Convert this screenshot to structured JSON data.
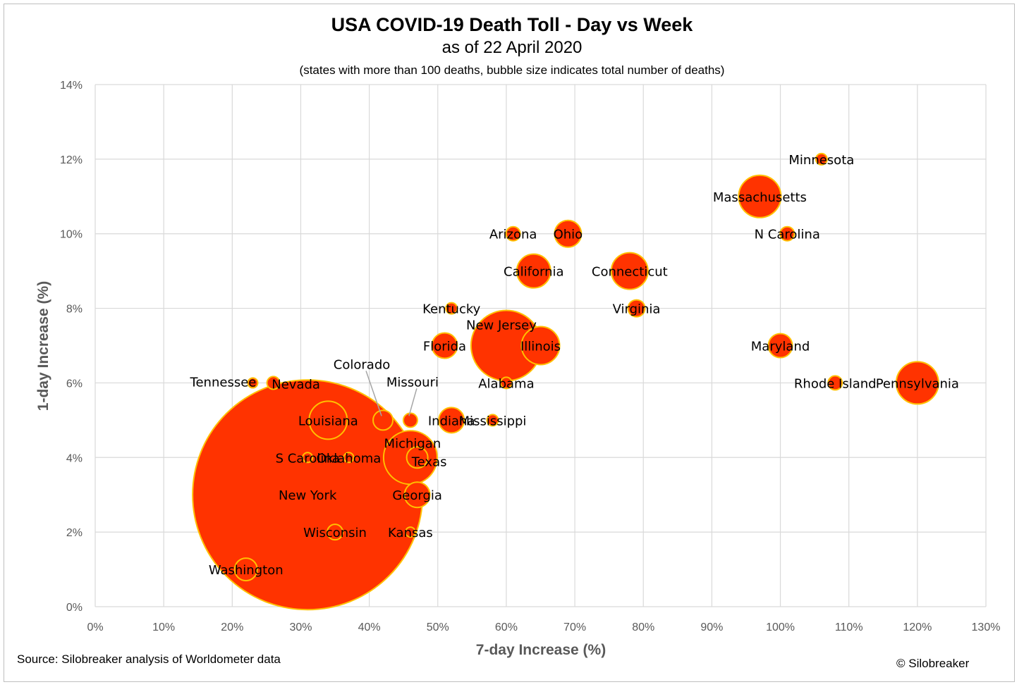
{
  "chart_data": {
    "type": "scatter",
    "title": "USA COVID-19 Death Toll - Day vs Week",
    "subtitle": "as of 22 April 2020",
    "note": "(states with more than 100 deaths, bubble size indicates total number of deaths)",
    "xlabel": "7-day Increase (%)",
    "ylabel": "1-day Increase (%)",
    "xlim": [
      0,
      130
    ],
    "ylim": [
      0,
      14
    ],
    "x_ticks": [
      "0%",
      "10%",
      "20%",
      "30%",
      "40%",
      "50%",
      "60%",
      "70%",
      "80%",
      "90%",
      "100%",
      "110%",
      "120%",
      "130%"
    ],
    "y_ticks": [
      "0%",
      "2%",
      "4%",
      "6%",
      "8%",
      "10%",
      "12%",
      "14%"
    ],
    "grid": true,
    "bubble_color": "#ff3300",
    "bubble_edge_color": "#ffc000",
    "points": [
      {
        "label": "Minnesota",
        "x": 106,
        "y": 12,
        "r": 8
      },
      {
        "label": "Massachusetts",
        "x": 97,
        "y": 11,
        "r": 30
      },
      {
        "label": "N Carolina",
        "x": 101,
        "y": 10,
        "r": 10
      },
      {
        "label": "Arizona",
        "x": 61,
        "y": 10,
        "r": 10
      },
      {
        "label": "Ohio",
        "x": 69,
        "y": 10,
        "r": 19
      },
      {
        "label": "California",
        "x": 64,
        "y": 9,
        "r": 24
      },
      {
        "label": "Connecticut",
        "x": 78,
        "y": 9,
        "r": 26
      },
      {
        "label": "Kentucky",
        "x": 52,
        "y": 8,
        "r": 8
      },
      {
        "label": "Virginia",
        "x": 79,
        "y": 8,
        "r": 12
      },
      {
        "label": "New Jersey",
        "x": 60,
        "y": 7,
        "r": 50
      },
      {
        "label": "Illinois",
        "x": 65,
        "y": 7,
        "r": 27
      },
      {
        "label": "Florida",
        "x": 51,
        "y": 7,
        "r": 18
      },
      {
        "label": "Maryland",
        "x": 100,
        "y": 7,
        "r": 17
      },
      {
        "label": "Tennessee",
        "x": 23,
        "y": 6,
        "r": 7
      },
      {
        "label": "Nevada",
        "x": 26,
        "y": 6,
        "r": 9
      },
      {
        "label": "Alabama",
        "x": 60,
        "y": 6,
        "r": 8
      },
      {
        "label": "Rhode Island",
        "x": 108,
        "y": 6,
        "r": 10
      },
      {
        "label": "Pennsylvania",
        "x": 120,
        "y": 6,
        "r": 30
      },
      {
        "label": "Colorado",
        "x": 42,
        "y": 5,
        "r": 14
      },
      {
        "label": "Missouri",
        "x": 46,
        "y": 5,
        "r": 10
      },
      {
        "label": "Louisiana",
        "x": 34,
        "y": 5,
        "r": 27
      },
      {
        "label": "Indiana",
        "x": 52,
        "y": 5,
        "r": 18
      },
      {
        "label": "Mississippi",
        "x": 58,
        "y": 5,
        "r": 8
      },
      {
        "label": "Michigan",
        "x": 46,
        "y": 4,
        "r": 38
      },
      {
        "label": "Texas",
        "x": 47,
        "y": 4,
        "r": 15
      },
      {
        "label": "S Carolina",
        "x": 31,
        "y": 4,
        "r": 7
      },
      {
        "label": "Oklahoma",
        "x": 37,
        "y": 4,
        "r": 7
      },
      {
        "label": "New York",
        "x": 31,
        "y": 3,
        "r": 163
      },
      {
        "label": "Georgia",
        "x": 47,
        "y": 3,
        "r": 18
      },
      {
        "label": "Wisconsin",
        "x": 35,
        "y": 2,
        "r": 11
      },
      {
        "label": "Kansas",
        "x": 46,
        "y": 2,
        "r": 7
      },
      {
        "label": "Washington",
        "x": 22,
        "y": 1,
        "r": 16
      }
    ]
  },
  "footer": {
    "source": "Source: Silobreaker analysis of Worldometer data",
    "copyright": "© Silobreaker"
  }
}
